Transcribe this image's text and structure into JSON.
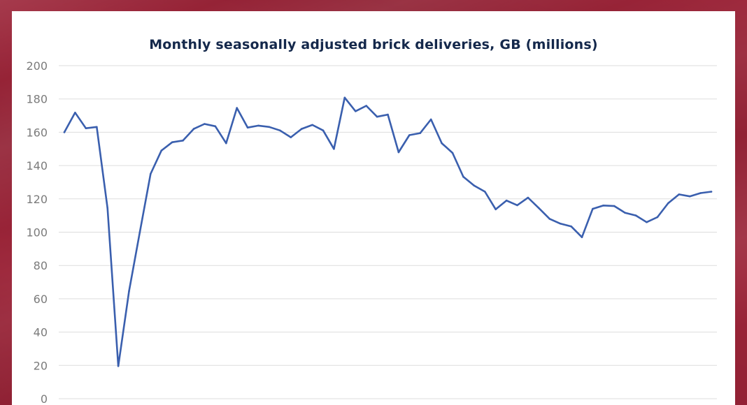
{
  "colors": {
    "frame": "#9b2438",
    "card": "#ffffff",
    "title": "#14284b",
    "line": "#3a5fae",
    "grid": "#dddddd",
    "tick": "#7b7b7b"
  },
  "chart_data": {
    "type": "line",
    "title": "Monthly seasonally adjusted brick deliveries, GB (millions)",
    "xlabel": "",
    "ylabel": "",
    "ylim": [
      0,
      200
    ],
    "yticks": [
      0,
      20,
      40,
      60,
      80,
      100,
      120,
      140,
      160,
      180,
      200
    ],
    "ytick_labels": [
      "0",
      "20",
      "40",
      "60",
      "80",
      "100",
      "120",
      "140",
      "160",
      "180",
      "200"
    ],
    "grid": true,
    "legend": "none",
    "series": [
      {
        "name": "Brick deliveries",
        "values": [
          160.0,
          171.8,
          162.4,
          163.2,
          114.5,
          19.6,
          64.6,
          100.0,
          135.0,
          149.0,
          154.0,
          155.0,
          162.0,
          165.0,
          163.6,
          153.4,
          174.6,
          162.8,
          164.0,
          163.2,
          161.1,
          157.0,
          162.0,
          164.4,
          161.1,
          150.0,
          180.8,
          172.6,
          175.9,
          169.3,
          170.6,
          148.0,
          158.3,
          159.5,
          167.7,
          153.4,
          147.6,
          133.3,
          128.0,
          124.3,
          113.7,
          119.0,
          116.2,
          120.7,
          114.5,
          108.0,
          105.1,
          103.5,
          97.0,
          114.0,
          116.0,
          115.7,
          111.6,
          110.0,
          106.0,
          109.0,
          117.4,
          122.7,
          121.5,
          123.5,
          124.3
        ]
      }
    ]
  }
}
